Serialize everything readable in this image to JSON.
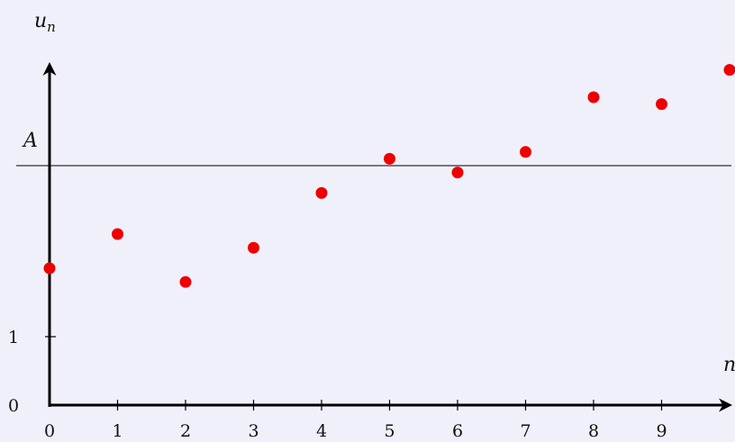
{
  "chart_data": {
    "type": "scatter",
    "x": [
      0,
      1,
      2,
      3,
      4,
      5,
      6,
      7,
      8,
      9,
      10
    ],
    "y": [
      2.0,
      2.5,
      1.8,
      2.3,
      3.1,
      3.6,
      3.4,
      3.7,
      4.5,
      4.4,
      4.9
    ],
    "x_ticks": [
      "0",
      "1",
      "2",
      "3",
      "4",
      "5",
      "6",
      "7",
      "8",
      "9"
    ],
    "y_ticks": [
      {
        "value": 0,
        "label": "0"
      },
      {
        "value": 1,
        "label": "1"
      }
    ],
    "ylabel": "u_n",
    "xlabel": "n",
    "reference_line": {
      "value": 3.5,
      "label": "A"
    },
    "xlim": [
      0,
      10
    ],
    "ylim": [
      0,
      5
    ],
    "grid": false,
    "colors": {
      "points": "#ee0000",
      "axes": "#000000"
    }
  }
}
